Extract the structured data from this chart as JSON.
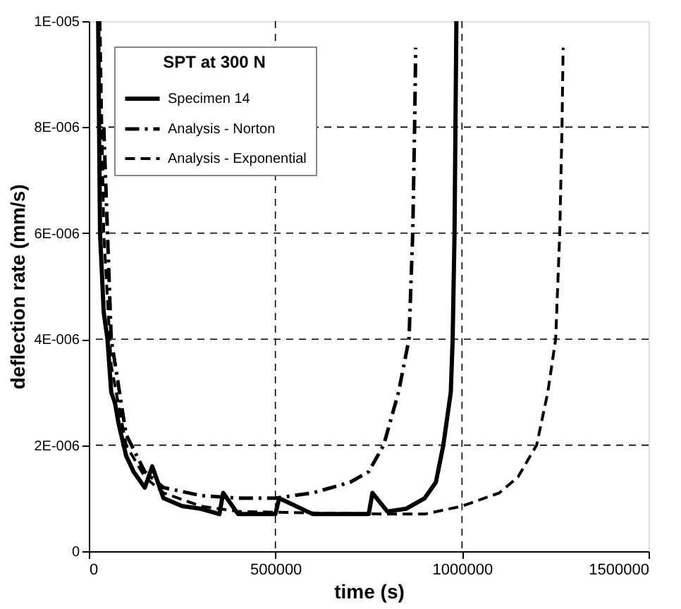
{
  "chart_data": {
    "type": "line",
    "xlabel": "time (s)",
    "ylabel": "deflection rate (mm/s)",
    "legend_title": "SPT at 300 N",
    "xlim": [
      0,
      1500000
    ],
    "xticks": [
      0,
      500000,
      1000000,
      1500000
    ],
    "ylim": [
      0,
      1e-05
    ],
    "yticks": [
      0,
      {
        "value": 2e-06,
        "label": "2E-006"
      },
      {
        "value": 4e-06,
        "label": "4E-006"
      },
      {
        "value": 6e-06,
        "label": "6E-006"
      },
      {
        "value": 8e-06,
        "label": "8E-006"
      },
      {
        "value": 1e-05,
        "label": "1E-005"
      }
    ],
    "grid": true,
    "legend": "top left",
    "series": [
      {
        "name": "Specimen 14",
        "color": "#000000",
        "line_style": "solid",
        "x": [
          25000,
          30000,
          40000,
          50000,
          60000,
          70000,
          80000,
          100000,
          120000,
          150000,
          170000,
          200000,
          250000,
          300000,
          350000,
          360000,
          400000,
          450000,
          500000,
          510000,
          600000,
          700000,
          750000,
          760000,
          800000,
          850000,
          900000,
          930000,
          950000,
          970000,
          975000,
          980000,
          985000
        ],
        "values": [
          1e-05,
          6e-06,
          4.5e-06,
          4e-06,
          3e-06,
          2.8e-06,
          2.4e-06,
          1.8e-06,
          1.5e-06,
          1.2e-06,
          1.6e-06,
          1e-06,
          8.5e-07,
          8e-07,
          7e-07,
          1.1e-06,
          7e-07,
          7e-07,
          7e-07,
          1e-06,
          7e-07,
          7e-07,
          7e-07,
          1.1e-06,
          7.5e-07,
          8e-07,
          1e-06,
          1.3e-06,
          2e-06,
          3e-06,
          4e-06,
          6e-06,
          1e-05
        ]
      },
      {
        "name": "Analysis - Norton",
        "color": "#000000",
        "line_style": "dashdot",
        "x": [
          40000,
          60000,
          100000,
          150000,
          200000,
          300000,
          400000,
          500000,
          600000,
          700000,
          750000,
          790000,
          830000,
          858000,
          868000,
          873000,
          876000
        ],
        "values": [
          8e-06,
          4e-06,
          2.2e-06,
          1.5e-06,
          1.2e-06,
          1.05e-06,
          1e-06,
          1e-06,
          1.1e-06,
          1.3e-06,
          1.5e-06,
          2e-06,
          3e-06,
          4e-06,
          6e-06,
          8e-06,
          9.5e-06
        ]
      },
      {
        "name": "Analysis - Exponential",
        "color": "#000000",
        "line_style": "dashed",
        "x": [
          30000,
          40000,
          60000,
          100000,
          150000,
          200000,
          300000,
          400000,
          600000,
          800000,
          900000,
          1000000,
          1100000,
          1150000,
          1200000,
          1230000,
          1251000,
          1262000,
          1268000,
          1271000
        ],
        "values": [
          1e-05,
          6e-06,
          3.5e-06,
          2e-06,
          1.4e-06,
          1.1e-06,
          8.5e-07,
          7.5e-07,
          7.2e-07,
          7e-07,
          7e-07,
          8.5e-07,
          1.1e-06,
          1.4e-06,
          2e-06,
          3e-06,
          4e-06,
          6e-06,
          8e-06,
          9.5e-06
        ]
      }
    ]
  }
}
